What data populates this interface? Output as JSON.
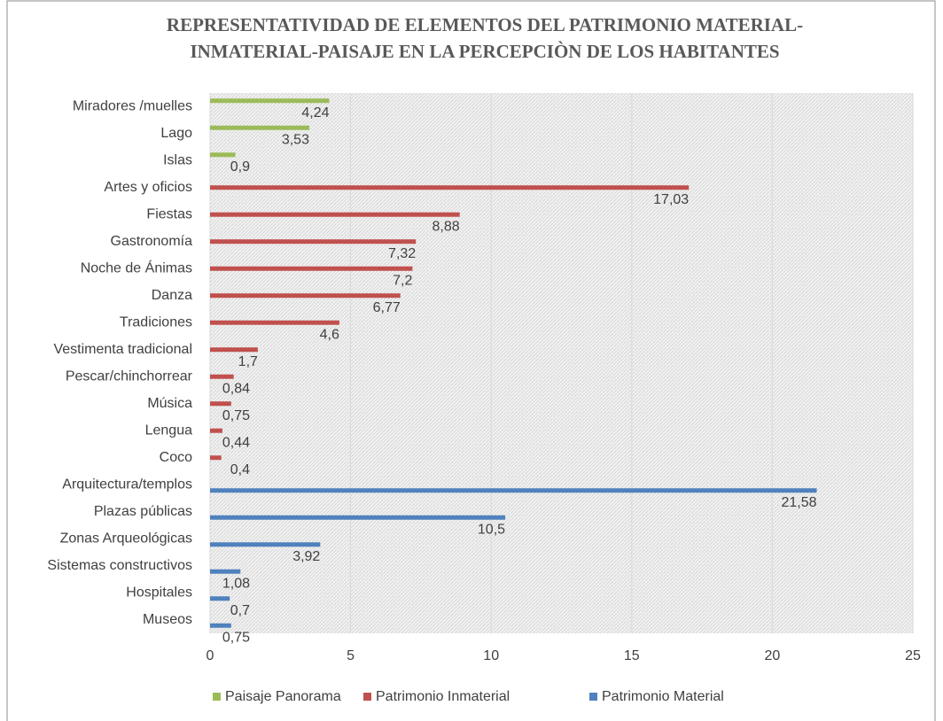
{
  "chart_data": {
    "type": "bar",
    "orientation": "horizontal",
    "title": [
      "REPRESENTATIVIDAD DE ELEMENTOS DEL PATRIMONIO MATERIAL-",
      "INMATERIAL-PAISAJE EN LA PERCEPCIÒN DE LOS HABITANTES"
    ],
    "categories": [
      "Miradores /muelles",
      "Lago",
      "Islas",
      "Artes y oficios",
      "Fiestas",
      "Gastronomía",
      "Noche de Ánimas",
      "Danza",
      "Tradiciones",
      "Vestimenta tradicional",
      "Pescar/chinchorrear",
      "Música",
      "Lengua",
      "Coco",
      "Arquitectura/templos",
      "Plazas públicas",
      "Zonas Arqueológicas",
      "Sistemas constructivos",
      "Hospitales",
      "Museos"
    ],
    "series": [
      {
        "name": "Paisaje Panorama",
        "color": "#9bbb59",
        "values": [
          4.24,
          3.53,
          0.9,
          null,
          null,
          null,
          null,
          null,
          null,
          null,
          null,
          null,
          null,
          null,
          null,
          null,
          null,
          null,
          null,
          null
        ],
        "value_labels": [
          "4,24",
          "3,53",
          "0,9",
          null,
          null,
          null,
          null,
          null,
          null,
          null,
          null,
          null,
          null,
          null,
          null,
          null,
          null,
          null,
          null,
          null
        ]
      },
      {
        "name": "Patrimonio Inmaterial",
        "color": "#c0504d",
        "values": [
          null,
          null,
          null,
          17.03,
          8.88,
          7.32,
          7.2,
          6.77,
          4.6,
          1.7,
          0.84,
          0.75,
          0.44,
          0.4,
          null,
          null,
          null,
          null,
          null,
          null
        ],
        "value_labels": [
          null,
          null,
          null,
          "17,03",
          "8,88",
          "7,32",
          "7,2",
          "6,77",
          "4,6",
          "1,7",
          "0,84",
          "0,75",
          "0,44",
          "0,4",
          null,
          null,
          null,
          null,
          null,
          null
        ]
      },
      {
        "name": "Patrimonio Material",
        "color": "#4f81bd",
        "values": [
          null,
          null,
          null,
          null,
          null,
          null,
          null,
          null,
          null,
          null,
          null,
          null,
          null,
          null,
          21.58,
          10.5,
          3.92,
          1.08,
          0.7,
          0.75
        ],
        "value_labels": [
          null,
          null,
          null,
          null,
          null,
          null,
          null,
          null,
          null,
          null,
          null,
          null,
          null,
          null,
          "21,58",
          "10,5",
          "3,92",
          "1,08",
          "0,7",
          "0,75"
        ]
      }
    ],
    "xlim": [
      0,
      25
    ],
    "xticks": [
      0,
      5,
      10,
      15,
      20,
      25
    ],
    "grid": true,
    "legend": "bottom"
  }
}
